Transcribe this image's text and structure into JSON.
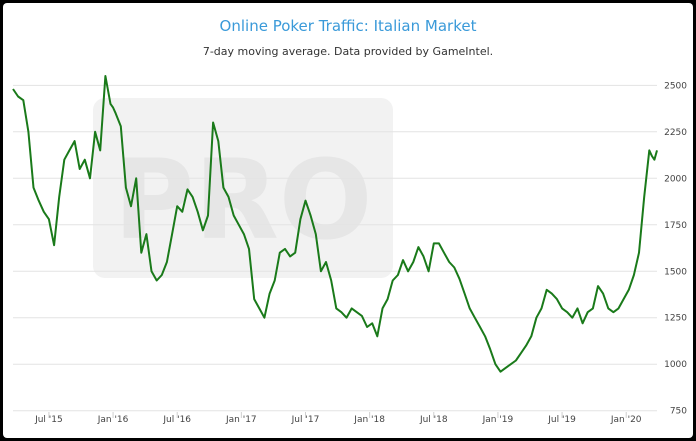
{
  "chart_data": {
    "type": "line",
    "title": "Online Poker Traffic: Italian Market",
    "subtitle": "7-day moving average. Data provided by GameIntel.",
    "xlabel": "",
    "ylabel": "",
    "ylim": [
      750,
      2500
    ],
    "yticks": [
      750,
      1000,
      1250,
      1500,
      1750,
      2000,
      2250,
      2500
    ],
    "xticks": [
      {
        "label": "Jul '15",
        "t": 2015.5
      },
      {
        "label": "Jan '16",
        "t": 2016.0
      },
      {
        "label": "Jul '16",
        "t": 2016.5
      },
      {
        "label": "Jan '17",
        "t": 2017.0
      },
      {
        "label": "Jul '17",
        "t": 2017.5
      },
      {
        "label": "Jan '18",
        "t": 2018.0
      },
      {
        "label": "Jul '18",
        "t": 2018.5
      },
      {
        "label": "Jan '19",
        "t": 2019.0
      },
      {
        "label": "Jul '19",
        "t": 2019.5
      },
      {
        "label": "Jan '20",
        "t": 2020.0
      }
    ],
    "grid": true,
    "line_color": "#1a7a1a",
    "watermark": "PRO",
    "series": [
      {
        "x": [
          2015.22,
          2015.26,
          2015.3,
          2015.34,
          2015.38,
          2015.42,
          2015.46,
          2015.5,
          2015.54,
          2015.58,
          2015.62,
          2015.66,
          2015.7,
          2015.74,
          2015.78,
          2015.82,
          2015.86,
          2015.9,
          2015.94,
          2015.98,
          2016.0,
          2016.02,
          2016.06,
          2016.1,
          2016.14,
          2016.18,
          2016.22,
          2016.26,
          2016.3,
          2016.34,
          2016.38,
          2016.42,
          2016.46,
          2016.5,
          2016.54,
          2016.58,
          2016.62,
          2016.66,
          2016.7,
          2016.74,
          2016.78,
          2016.82,
          2016.86,
          2016.9,
          2016.94,
          2016.98,
          2017.02,
          2017.06,
          2017.1,
          2017.14,
          2017.18,
          2017.22,
          2017.26,
          2017.3,
          2017.34,
          2017.38,
          2017.42,
          2017.46,
          2017.5,
          2017.54,
          2017.58,
          2017.62,
          2017.66,
          2017.7,
          2017.74,
          2017.78,
          2017.82,
          2017.86,
          2017.9,
          2017.94,
          2017.98,
          2018.02,
          2018.06,
          2018.1,
          2018.14,
          2018.18,
          2018.22,
          2018.26,
          2018.3,
          2018.34,
          2018.38,
          2018.42,
          2018.46,
          2018.5,
          2018.54,
          2018.58,
          2018.62,
          2018.66,
          2018.7,
          2018.74,
          2018.78,
          2018.82,
          2018.86,
          2018.9,
          2018.94,
          2018.98,
          2019.02,
          2019.06,
          2019.1,
          2019.14,
          2019.18,
          2019.22,
          2019.26,
          2019.3,
          2019.34,
          2019.38,
          2019.42,
          2019.46,
          2019.5,
          2019.54,
          2019.58,
          2019.62,
          2019.66,
          2019.7,
          2019.74,
          2019.78,
          2019.82,
          2019.86,
          2019.9,
          2019.94,
          2019.98,
          2020.02,
          2020.06,
          2020.1,
          2020.14,
          2020.18,
          2020.2,
          2020.22,
          2020.24
        ],
        "y": [
          2480,
          2440,
          2420,
          2250,
          1950,
          1880,
          1820,
          1780,
          1640,
          1900,
          2100,
          2150,
          2200,
          2050,
          2100,
          2000,
          2250,
          2150,
          2550,
          2400,
          2380,
          2350,
          2280,
          1950,
          1850,
          2000,
          1600,
          1700,
          1500,
          1450,
          1480,
          1550,
          1700,
          1850,
          1820,
          1940,
          1900,
          1820,
          1720,
          1800,
          2300,
          2200,
          1950,
          1900,
          1800,
          1750,
          1700,
          1620,
          1350,
          1300,
          1250,
          1380,
          1450,
          1600,
          1620,
          1580,
          1600,
          1780,
          1880,
          1800,
          1700,
          1500,
          1550,
          1450,
          1300,
          1280,
          1250,
          1300,
          1280,
          1260,
          1200,
          1220,
          1150,
          1300,
          1350,
          1450,
          1480,
          1560,
          1500,
          1550,
          1630,
          1580,
          1500,
          1650,
          1650,
          1600,
          1550,
          1520,
          1460,
          1380,
          1300,
          1250,
          1200,
          1150,
          1080,
          1000,
          960,
          980,
          1000,
          1020,
          1060,
          1100,
          1150,
          1250,
          1300,
          1400,
          1380,
          1350,
          1300,
          1280,
          1250,
          1300,
          1220,
          1280,
          1300,
          1420,
          1380,
          1300,
          1280,
          1300,
          1350,
          1400,
          1480,
          1600,
          1900,
          2150,
          2120,
          2100,
          2150
        ]
      }
    ]
  }
}
